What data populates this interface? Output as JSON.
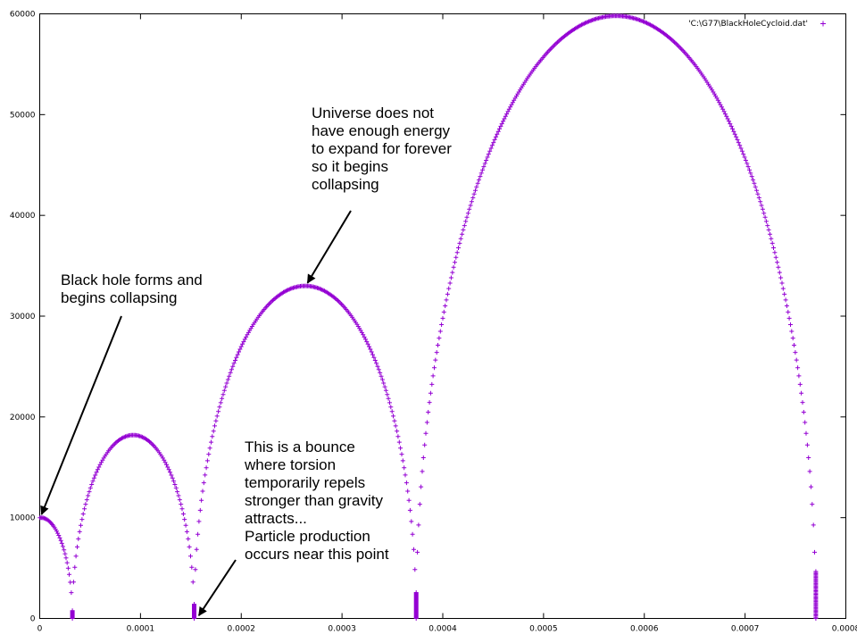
{
  "chart_data": {
    "type": "scatter",
    "xlim": [
      0,
      0.0008
    ],
    "ylim": [
      0,
      60000
    ],
    "x_ticks": [
      0,
      0.0001,
      0.0002,
      0.0003,
      0.0004,
      0.0005,
      0.0006,
      0.0007,
      0.0008
    ],
    "x_tick_labels": [
      "0",
      "0.0001",
      "0.0002",
      "0.0003",
      "0.0004",
      "0.0005",
      "0.0006",
      "0.0007",
      "0.0008"
    ],
    "y_ticks": [
      0,
      10000,
      20000,
      30000,
      40000,
      50000,
      60000
    ],
    "y_tick_labels": [
      "0",
      "10000",
      "20000",
      "30000",
      "40000",
      "50000",
      "60000"
    ],
    "grid": false,
    "legend_position": "top-right",
    "marker": "+",
    "series": [
      {
        "name": "'C:\\G77\\BlackHoleCycloid.dat'",
        "color": "#9400d3",
        "arches": [
          {
            "x_start": -3e-05,
            "x_end": 3.24e-05,
            "peak": 10000
          },
          {
            "x_start": 3.24e-05,
            "x_end": 0.0001533,
            "peak": 18200
          },
          {
            "x_start": 0.0001533,
            "x_end": 0.0003736,
            "peak": 33000
          },
          {
            "x_start": 0.0003736,
            "x_end": 0.0007702,
            "peak": 59800
          }
        ]
      }
    ],
    "annotations": [
      {
        "text": "Universe does not\nhave enough energy\nto expand for forever\nso it begins\ncollapsing",
        "target": [
          0.000264,
          33000
        ]
      },
      {
        "text": "Black hole forms and\nbegins collapsing",
        "target": [
          5e-07,
          10000
        ]
      },
      {
        "text": "This is a bounce\nwhere torsion\ntemporarily repels\nstronger than gravity\nattracts...\nParticle production\noccurs near this point",
        "target": [
          0.000156,
          0
        ]
      }
    ]
  }
}
